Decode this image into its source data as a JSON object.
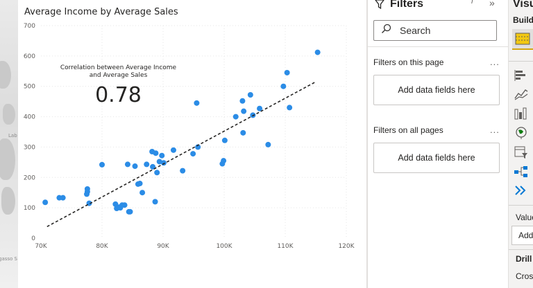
{
  "map": {
    "label_lab": "Lab",
    "label_bottom": "gasso S"
  },
  "visual": {
    "title": "Average Income by Average Sales",
    "card_label": "Correlation between Average Income and Average Sales",
    "card_value": "0.78"
  },
  "chart_data": {
    "type": "scatter",
    "title": "Average Income by Average Sales",
    "xlabel": "",
    "ylabel": "",
    "xlim": [
      70000,
      120000
    ],
    "ylim": [
      0,
      700
    ],
    "x_ticks": [
      "70K",
      "80K",
      "90K",
      "100K",
      "110K",
      "120K"
    ],
    "y_ticks": [
      "0",
      "100",
      "200",
      "300",
      "400",
      "500",
      "600",
      "700"
    ],
    "grid": true,
    "trendline": {
      "style": "dashed",
      "x": [
        71000,
        115000
      ],
      "y": [
        38,
        515
      ]
    },
    "color": "#2b8ce6",
    "points": [
      {
        "x": 70700,
        "y": 118
      },
      {
        "x": 73000,
        "y": 133
      },
      {
        "x": 73600,
        "y": 133
      },
      {
        "x": 77500,
        "y": 145
      },
      {
        "x": 77600,
        "y": 162
      },
      {
        "x": 77900,
        "y": 115
      },
      {
        "x": 77600,
        "y": 153
      },
      {
        "x": 80000,
        "y": 242
      },
      {
        "x": 82200,
        "y": 112
      },
      {
        "x": 82400,
        "y": 98
      },
      {
        "x": 82800,
        "y": 102
      },
      {
        "x": 83000,
        "y": 100
      },
      {
        "x": 83300,
        "y": 109
      },
      {
        "x": 83700,
        "y": 109
      },
      {
        "x": 84200,
        "y": 243
      },
      {
        "x": 84400,
        "y": 87
      },
      {
        "x": 84600,
        "y": 87
      },
      {
        "x": 85400,
        "y": 237
      },
      {
        "x": 85900,
        "y": 178
      },
      {
        "x": 86200,
        "y": 180
      },
      {
        "x": 86600,
        "y": 150
      },
      {
        "x": 87300,
        "y": 243
      },
      {
        "x": 88300,
        "y": 235
      },
      {
        "x": 88700,
        "y": 120
      },
      {
        "x": 88800,
        "y": 280
      },
      {
        "x": 88200,
        "y": 285
      },
      {
        "x": 89000,
        "y": 216
      },
      {
        "x": 89400,
        "y": 252
      },
      {
        "x": 89800,
        "y": 272
      },
      {
        "x": 90100,
        "y": 248
      },
      {
        "x": 91700,
        "y": 290
      },
      {
        "x": 93200,
        "y": 222
      },
      {
        "x": 94900,
        "y": 278
      },
      {
        "x": 95500,
        "y": 445
      },
      {
        "x": 95700,
        "y": 300
      },
      {
        "x": 99700,
        "y": 245
      },
      {
        "x": 99900,
        "y": 255
      },
      {
        "x": 100100,
        "y": 322
      },
      {
        "x": 101900,
        "y": 400
      },
      {
        "x": 103000,
        "y": 452
      },
      {
        "x": 103100,
        "y": 347
      },
      {
        "x": 103200,
        "y": 418
      },
      {
        "x": 104300,
        "y": 472
      },
      {
        "x": 104700,
        "y": 405
      },
      {
        "x": 105800,
        "y": 427
      },
      {
        "x": 107200,
        "y": 308
      },
      {
        "x": 109700,
        "y": 500
      },
      {
        "x": 110300,
        "y": 545
      },
      {
        "x": 110700,
        "y": 430
      },
      {
        "x": 115300,
        "y": 612
      }
    ]
  },
  "filters": {
    "title": "Filters",
    "search_placeholder": "Search",
    "on_this_page": "Filters on this page",
    "on_all_pages": "Filters on all pages",
    "more": "...",
    "add_fields": "Add data fields here"
  },
  "viz_pane": {
    "title": "Visualizations",
    "build": "Build visual",
    "values_label": "Values",
    "add_label": "Add data fields here",
    "drill": "Drill through",
    "cross": "Cross-report"
  }
}
